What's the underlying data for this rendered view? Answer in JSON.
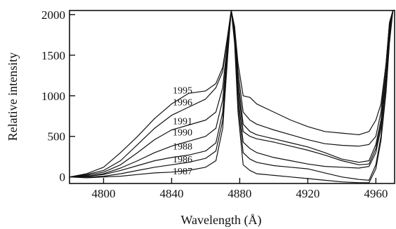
{
  "chart_data": {
    "type": "line",
    "title": "",
    "xlabel": "Wavelength (Å)",
    "ylabel": "Relative intensity",
    "xlim": [
      4780,
      4971
    ],
    "ylim": [
      -80,
      2050
    ],
    "xticks": [
      4800,
      4840,
      4880,
      4920,
      4960
    ],
    "yticks": [
      0,
      500,
      1000,
      1500,
      2000
    ],
    "grid": false,
    "legend": "inline labels to the left of the Hβ peak",
    "series": [
      {
        "name": "1995",
        "label_at": [
          4853,
          1030
        ],
        "x": [
          4780,
          4790,
          4800,
          4810,
          4820,
          4830,
          4840,
          4850,
          4860,
          4866,
          4870,
          4873,
          4875,
          4877,
          4879,
          4882,
          4886,
          4890,
          4900,
          4910,
          4920,
          4930,
          4940,
          4950,
          4956,
          4960,
          4963,
          4966,
          4968,
          4970,
          4971
        ],
        "y": [
          0,
          40,
          120,
          300,
          500,
          720,
          900,
          1030,
          1060,
          1150,
          1350,
          1750,
          2050,
          1850,
          1400,
          1000,
          980,
          900,
          800,
          700,
          620,
          560,
          540,
          520,
          560,
          700,
          900,
          1400,
          1900,
          2050,
          2050
        ]
      },
      {
        "name": "1996",
        "label_at": [
          4853,
          880
        ],
        "x": [
          4780,
          4790,
          4800,
          4810,
          4820,
          4830,
          4840,
          4850,
          4860,
          4866,
          4870,
          4873,
          4875,
          4877,
          4879,
          4882,
          4886,
          4890,
          4900,
          4910,
          4920,
          4930,
          4940,
          4950,
          4956,
          4960,
          4963,
          4966,
          4968,
          4970,
          4971
        ],
        "y": [
          0,
          30,
          80,
          200,
          400,
          600,
          760,
          860,
          960,
          1100,
          1300,
          1750,
          2050,
          1850,
          1300,
          800,
          700,
          650,
          580,
          520,
          460,
          410,
          390,
          380,
          400,
          500,
          800,
          1400,
          1900,
          2050,
          2050
        ]
      },
      {
        "name": "1991",
        "label_at": [
          4853,
          650
        ],
        "x": [
          4780,
          4790,
          4800,
          4810,
          4820,
          4830,
          4840,
          4850,
          4860,
          4866,
          4870,
          4873,
          4875,
          4877,
          4879,
          4882,
          4886,
          4890,
          4900,
          4910,
          4920,
          4930,
          4940,
          4950,
          4956,
          4960,
          4963,
          4966,
          4968,
          4970,
          4971
        ],
        "y": [
          0,
          20,
          60,
          150,
          300,
          460,
          580,
          640,
          700,
          800,
          1100,
          1700,
          2050,
          1800,
          1200,
          650,
          560,
          520,
          470,
          420,
          370,
          300,
          220,
          180,
          200,
          400,
          700,
          1300,
          1850,
          2050,
          2050
        ]
      },
      {
        "name": "1990",
        "label_at": [
          4853,
          510
        ],
        "x": [
          4780,
          4790,
          4800,
          4810,
          4820,
          4830,
          4840,
          4850,
          4860,
          4866,
          4870,
          4873,
          4875,
          4877,
          4879,
          4882,
          4886,
          4890,
          4900,
          4910,
          4920,
          4930,
          4940,
          4950,
          4956,
          4960,
          4963,
          4966,
          4968,
          4970,
          4971
        ],
        "y": [
          0,
          10,
          40,
          110,
          200,
          300,
          380,
          440,
          500,
          600,
          950,
          1650,
          2050,
          1800,
          1100,
          560,
          500,
          470,
          430,
          380,
          330,
          270,
          200,
          150,
          160,
          350,
          650,
          1250,
          1800,
          2050,
          2050
        ]
      },
      {
        "name": "1988",
        "label_at": [
          4853,
          340
        ],
        "x": [
          4780,
          4790,
          4800,
          4810,
          4820,
          4830,
          4840,
          4850,
          4860,
          4866,
          4870,
          4873,
          4875,
          4877,
          4879,
          4882,
          4886,
          4890,
          4900,
          4910,
          4920,
          4930,
          4940,
          4950,
          4956,
          4960,
          4963,
          4966,
          4968,
          4970,
          4971
        ],
        "y": [
          0,
          10,
          30,
          80,
          140,
          200,
          240,
          270,
          320,
          420,
          800,
          1600,
          2050,
          1750,
          1000,
          430,
          350,
          300,
          240,
          200,
          160,
          130,
          120,
          110,
          130,
          300,
          600,
          1200,
          1750,
          2050,
          2050
        ]
      },
      {
        "name": "1986",
        "label_at": [
          4853,
          180
        ],
        "x": [
          4780,
          4790,
          4800,
          4810,
          4820,
          4830,
          4840,
          4850,
          4860,
          4866,
          4870,
          4873,
          4875,
          4877,
          4879,
          4882,
          4886,
          4890,
          4900,
          4910,
          4920,
          4930,
          4940,
          4950,
          4956,
          4960,
          4963,
          4966,
          4968,
          4970,
          4971
        ],
        "y": [
          0,
          0,
          10,
          40,
          80,
          120,
          150,
          180,
          230,
          320,
          700,
          1550,
          2050,
          1700,
          900,
          300,
          220,
          180,
          140,
          120,
          100,
          50,
          0,
          -30,
          -40,
          150,
          500,
          1100,
          1700,
          2050,
          2050
        ]
      },
      {
        "name": "1987",
        "label_at": [
          4853,
          30
        ],
        "x": [
          4780,
          4790,
          4800,
          4810,
          4820,
          4830,
          4840,
          4850,
          4860,
          4866,
          4870,
          4873,
          4875,
          4877,
          4879,
          4882,
          4886,
          4890,
          4900,
          4910,
          4920,
          4930,
          4940,
          4950,
          4956,
          4960,
          4963,
          4966,
          4968,
          4970,
          4971
        ],
        "y": [
          0,
          -10,
          0,
          10,
          30,
          50,
          60,
          80,
          120,
          200,
          600,
          1500,
          2050,
          1650,
          800,
          150,
          80,
          40,
          20,
          0,
          -20,
          -40,
          -60,
          -70,
          -70,
          100,
          450,
          1050,
          1650,
          2050,
          2050
        ]
      }
    ]
  }
}
